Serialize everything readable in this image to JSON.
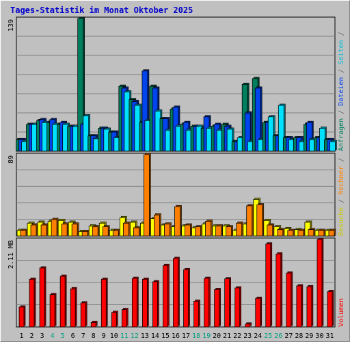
{
  "chart_data": [
    {
      "type": "bar",
      "title": "Tages-Statistik im Monat Oktober 2025",
      "panel": "top",
      "ymax_label": "139",
      "ylim": [
        0,
        139
      ],
      "categories": [
        "1",
        "2",
        "3",
        "4",
        "5",
        "6",
        "7",
        "8",
        "9",
        "10",
        "11",
        "12",
        "13",
        "14",
        "15",
        "16",
        "17",
        "18",
        "19",
        "20",
        "21",
        "22",
        "23",
        "24",
        "25",
        "26",
        "27",
        "28",
        "29",
        "30",
        "31"
      ],
      "weekend_days": [
        "4",
        "5",
        "11",
        "12",
        "18",
        "19",
        "25",
        "26"
      ],
      "series": [
        {
          "name": "Anfragen",
          "color": "#007f5f",
          "values": [
            12,
            28,
            32,
            30,
            28,
            26,
            139,
            16,
            24,
            20,
            68,
            54,
            30,
            68,
            34,
            44,
            28,
            26,
            24,
            26,
            28,
            10,
            70,
            76,
            30,
            16,
            14,
            14,
            28,
            14,
            12
          ]
        },
        {
          "name": "Dateien",
          "color": "#0044ee",
          "values": [
            12,
            28,
            33,
            33,
            30,
            26,
            28,
            16,
            24,
            20,
            66,
            52,
            84,
            66,
            34,
            46,
            30,
            26,
            36,
            28,
            26,
            10,
            40,
            66,
            30,
            16,
            14,
            14,
            30,
            14,
            12
          ]
        },
        {
          "name": "Seiten",
          "color": "#00e0ff",
          "values": [
            10,
            28,
            30,
            28,
            28,
            26,
            37,
            13,
            23,
            14,
            62,
            48,
            32,
            42,
            22,
            26,
            22,
            26,
            24,
            22,
            23,
            14,
            10,
            12,
            36,
            48,
            12,
            10,
            12,
            24,
            10
          ]
        }
      ],
      "axis_label_parts": [
        {
          "text": "Anfragen",
          "color": "#007f5f"
        },
        {
          "text": " / ",
          "color": "#606060"
        },
        {
          "text": "Dateien",
          "color": "#0044ee"
        },
        {
          "text": " / ",
          "color": "#606060"
        },
        {
          "text": "Seiten",
          "color": "#00c0d8"
        },
        {
          "text": " / ",
          "color": "#606060"
        }
      ]
    },
    {
      "type": "bar",
      "panel": "middle",
      "ymax_label": "89",
      "ylim": [
        0,
        89
      ],
      "series": [
        {
          "name": "Besuche",
          "color": "#ffff00",
          "values": [
            6,
            14,
            15,
            16,
            17,
            15,
            5,
            11,
            14,
            6,
            20,
            15,
            14,
            19,
            12,
            10,
            11,
            9,
            13,
            11,
            11,
            6,
            13,
            40,
            17,
            10,
            8,
            7,
            15,
            6,
            6
          ]
        },
        {
          "name": "Rechner",
          "color": "#ff8000",
          "values": [
            6,
            12,
            12,
            18,
            13,
            13,
            5,
            10,
            10,
            6,
            14,
            9,
            89,
            23,
            13,
            32,
            12,
            10,
            16,
            11,
            10,
            14,
            33,
            34,
            12,
            7,
            6,
            6,
            7,
            6,
            6
          ]
        }
      ],
      "axis_label_parts": [
        {
          "text": "Besuche",
          "color": "#c8c800"
        },
        {
          "text": " / ",
          "color": "#606060"
        },
        {
          "text": "Rechner",
          "color": "#ff8000"
        },
        {
          "text": " / ",
          "color": "#606060"
        }
      ]
    },
    {
      "type": "bar",
      "panel": "bottom",
      "ymax_label": "2.11 MB",
      "ylim": [
        0,
        2.11
      ],
      "series": [
        {
          "name": "Volumen",
          "color": "#ff0000",
          "values": [
            0.48,
            1.15,
            1.42,
            0.78,
            1.22,
            0.92,
            0.58,
            0.11,
            1.15,
            0.35,
            0.42,
            1.17,
            1.15,
            1.09,
            1.48,
            1.65,
            1.38,
            0.62,
            1.17,
            0.9,
            1.16,
            0.94,
            0.07,
            0.69,
            2.0,
            1.76,
            1.3,
            0.99,
            0.97,
            2.11,
            0.85
          ]
        }
      ],
      "axis_label_parts": [
        {
          "text": "Volumen",
          "color": "#ff0000"
        }
      ]
    }
  ]
}
